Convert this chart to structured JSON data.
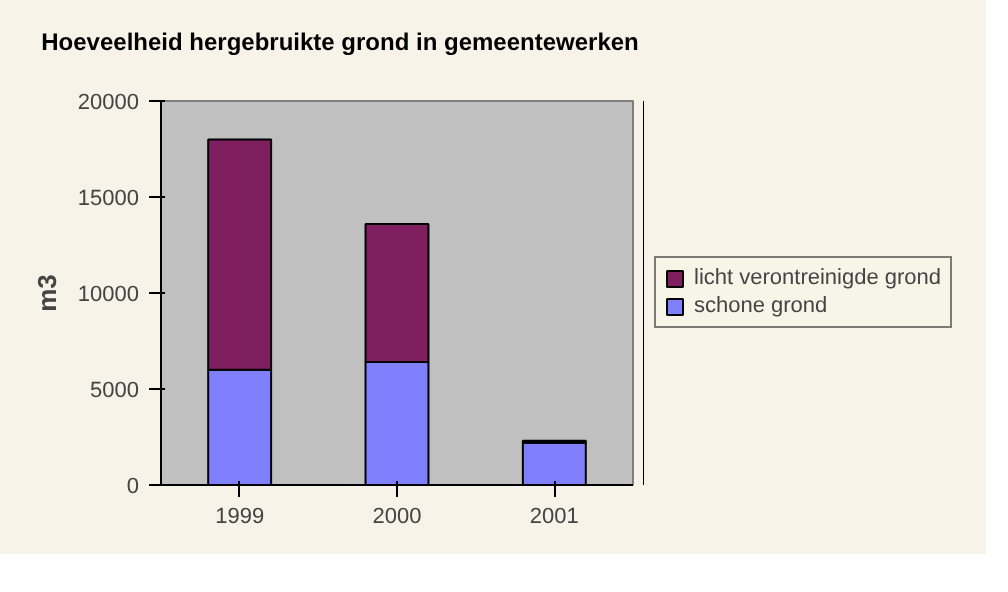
{
  "chart_data": {
    "type": "bar",
    "title": "Hoeveelheid hergebruikte grond in gemeentewerken",
    "ylabel": "m3",
    "categories": [
      "1999",
      "2000",
      "2001"
    ],
    "stacked": true,
    "series": [
      {
        "name": "schone grond",
        "color": "#8080ff",
        "values": [
          6000,
          6400,
          2200
        ]
      },
      {
        "name": "licht verontreinigde grond",
        "color": "#7f1f5f",
        "values": [
          12000,
          7200,
          100
        ]
      }
    ],
    "ylim": [
      0,
      20000
    ],
    "yticks": [
      0,
      5000,
      10000,
      15000,
      20000
    ],
    "grid": false,
    "legend": "right"
  }
}
